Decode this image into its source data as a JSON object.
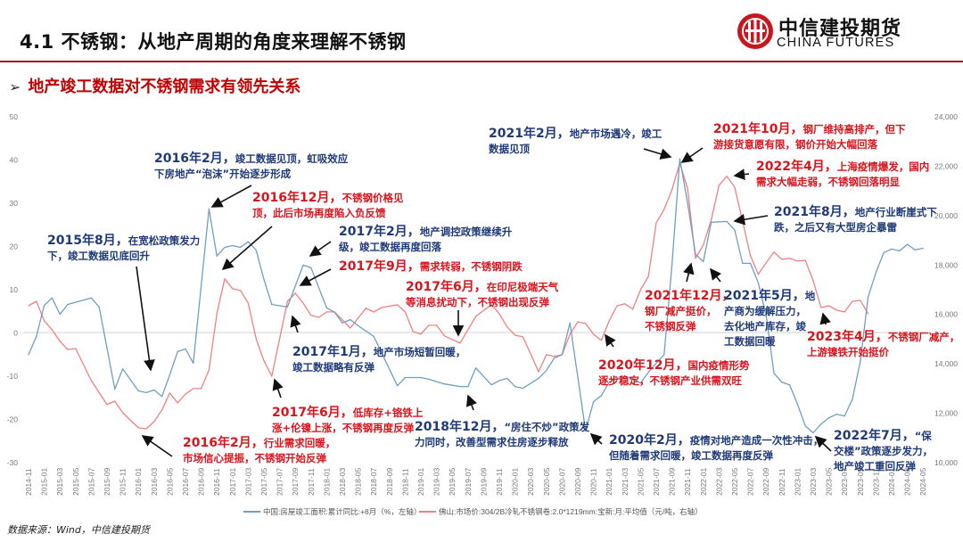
{
  "header": {
    "title": "4.1 不锈钢：从地产周期的角度来理解不锈钢",
    "subtitle_marker": "➢",
    "subtitle": "地产竣工数据对不锈钢需求有领先关系",
    "logo_cn": "中信建投期货",
    "logo_en": "CHINA FUTURES",
    "brand_color": "#c8161d"
  },
  "source": "数据来源：Wind，中信建投期货",
  "chart_data": {
    "type": "line",
    "title": "",
    "grid": false,
    "legend_position": "bottom",
    "x_range": [
      "2014-11",
      "2024-05"
    ],
    "x_tick_labels": [
      "2014-11",
      "2015-01",
      "2015-03",
      "2015-05",
      "2015-07",
      "2015-09",
      "2015-11",
      "2016-01",
      "2016-03",
      "2016-05",
      "2016-07",
      "2016-09",
      "2016-11",
      "2017-01",
      "2017-03",
      "2017-05",
      "2017-07",
      "2017-09",
      "2017-11",
      "2018-01",
      "2018-03",
      "2018-05",
      "2018-07",
      "2018-09",
      "2018-11",
      "2019-01",
      "2019-03",
      "2019-05",
      "2019-07",
      "2019-09",
      "2019-11",
      "2020-01",
      "2020-03",
      "2020-05",
      "2020-07",
      "2020-09",
      "2020-11",
      "2021-01",
      "2021-03",
      "2021-05",
      "2021-07",
      "2021-09",
      "2021-11",
      "2022-01",
      "2022-03",
      "2022-05",
      "2022-07",
      "2022-09",
      "2022-11",
      "2023-01",
      "2023-03",
      "2023-05",
      "2023-07",
      "2023-09",
      "2023-11",
      "2024-01",
      "2024-03",
      "2024-05"
    ],
    "y_left": {
      "range": [
        -30,
        50
      ],
      "ticks": [
        "50",
        "40",
        "30",
        "20",
        "10",
        "0",
        "-10",
        "-20",
        "-30"
      ]
    },
    "y_right": {
      "range": [
        10000,
        24000
      ],
      "ticks": [
        "24,000",
        "22,000",
        "20,000",
        "18,000",
        "16,000",
        "14,000",
        "12,000",
        "10,000"
      ]
    },
    "series": [
      {
        "name": "中国:房屋竣工面积:累计同比:+8月（%，左轴）",
        "axis": "left",
        "color": "#6f9fc0",
        "points": [
          [
            "2014-11",
            -5.0
          ],
          [
            "2014-12",
            -0.8
          ],
          [
            "2015-01",
            6.4
          ],
          [
            "2015-02",
            8.1
          ],
          [
            "2015-03",
            4.3
          ],
          [
            "2015-04",
            6.6
          ],
          [
            "2015-07",
            8.1
          ],
          [
            "2015-08",
            6.0
          ],
          [
            "2015-10",
            -13.0
          ],
          [
            "2015-11",
            -8.3
          ],
          [
            "2016-01",
            -13.4
          ],
          [
            "2016-02",
            -13.8
          ],
          [
            "2016-03",
            -13.2
          ],
          [
            "2016-04",
            -14.7
          ],
          [
            "2016-05",
            -9.7
          ],
          [
            "2016-06",
            -4.3
          ],
          [
            "2016-07",
            -3.7
          ],
          [
            "2016-08",
            -7.0
          ],
          [
            "2016-10",
            28.7
          ],
          [
            "2016-11",
            17.8
          ],
          [
            "2016-12",
            19.8
          ],
          [
            "2017-01",
            20.2
          ],
          [
            "2017-02",
            19.8
          ],
          [
            "2017-03",
            21.1
          ],
          [
            "2017-04",
            19.2
          ],
          [
            "2017-05",
            12.4
          ],
          [
            "2017-06",
            6.6
          ],
          [
            "2017-08",
            6.0
          ],
          [
            "2017-10",
            15.7
          ],
          [
            "2017-11",
            15.1
          ],
          [
            "2018-01",
            5.8
          ],
          [
            "2018-02",
            4.8
          ],
          [
            "2018-03",
            2.3
          ],
          [
            "2018-04",
            3.1
          ],
          [
            "2018-05",
            1.7
          ],
          [
            "2018-07",
            -0.8
          ],
          [
            "2018-10",
            -12.2
          ],
          [
            "2018-11",
            -10.3
          ],
          [
            "2019-01",
            -10.3
          ],
          [
            "2019-02",
            -10.7
          ],
          [
            "2019-04",
            -11.8
          ],
          [
            "2019-06",
            -12.4
          ],
          [
            "2019-07",
            -12.4
          ],
          [
            "2019-08",
            -8.1
          ],
          [
            "2019-10",
            -12.0
          ],
          [
            "2019-11",
            -11.0
          ],
          [
            "2019-12",
            -10.5
          ],
          [
            "2020-01",
            -12.4
          ],
          [
            "2020-02",
            -12.8
          ],
          [
            "2020-04",
            -10.5
          ],
          [
            "2020-05",
            -8.7
          ],
          [
            "2020-06",
            -5.8
          ],
          [
            "2020-07",
            -5.0
          ],
          [
            "2020-08",
            2.3
          ],
          [
            "2020-10",
            -22.7
          ],
          [
            "2020-11",
            -15.9
          ],
          [
            "2020-12",
            -14.5
          ],
          [
            "2021-01",
            -11.4
          ],
          [
            "2021-02",
            -10.5
          ],
          [
            "2021-03",
            -10.1
          ],
          [
            "2021-04",
            -10.5
          ],
          [
            "2021-05",
            -11.6
          ],
          [
            "2021-06",
            -9.1
          ],
          [
            "2021-07",
            -7.0
          ],
          [
            "2021-08",
            -5.0
          ],
          [
            "2021-09",
            15.7
          ],
          [
            "2021-10",
            40.3
          ],
          [
            "2021-11",
            30.0
          ],
          [
            "2021-12",
            18.2
          ],
          [
            "2022-01",
            16.5
          ],
          [
            "2022-02",
            25.6
          ],
          [
            "2022-04",
            25.8
          ],
          [
            "2022-05",
            23.8
          ],
          [
            "2022-06",
            16.1
          ],
          [
            "2022-07",
            16.1
          ],
          [
            "2022-08",
            11.6
          ],
          [
            "2022-09",
            4.1
          ],
          [
            "2022-10",
            -9.3
          ],
          [
            "2022-11",
            -11.4
          ],
          [
            "2022-12",
            -12.0
          ],
          [
            "2023-01",
            -16.5
          ],
          [
            "2023-02",
            -21.5
          ],
          [
            "2023-03",
            -23.1
          ],
          [
            "2023-04",
            -21.1
          ],
          [
            "2023-05",
            -19.6
          ],
          [
            "2023-06",
            -18.8
          ],
          [
            "2023-07",
            -19.2
          ],
          [
            "2023-08",
            -15.3
          ],
          [
            "2023-09",
            -6.6
          ],
          [
            "2023-10",
            8.3
          ],
          [
            "2023-11",
            14.0
          ],
          [
            "2023-12",
            18.6
          ],
          [
            "2024-01",
            19.4
          ],
          [
            "2024-02",
            19.0
          ],
          [
            "2024-03",
            20.5
          ],
          [
            "2024-04",
            19.2
          ],
          [
            "2024-05",
            19.6
          ]
        ]
      },
      {
        "name": "佛山:市场价:304/2B冷轧不锈钢卷:2.0*1219mm:宝新:月:平均值（元/吨，右轴）",
        "axis": "right",
        "color": "#f08080",
        "points": [
          [
            "2014-11",
            16350
          ],
          [
            "2014-12",
            16530
          ],
          [
            "2015-01",
            15740
          ],
          [
            "2015-02",
            15380
          ],
          [
            "2015-03",
            14910
          ],
          [
            "2015-04",
            14580
          ],
          [
            "2015-05",
            14620
          ],
          [
            "2015-07",
            13320
          ],
          [
            "2015-09",
            12350
          ],
          [
            "2015-10",
            12490
          ],
          [
            "2015-11",
            12020
          ],
          [
            "2016-01",
            11410
          ],
          [
            "2016-02",
            11370
          ],
          [
            "2016-03",
            11660
          ],
          [
            "2016-04",
            12130
          ],
          [
            "2016-05",
            12820
          ],
          [
            "2016-06",
            12420
          ],
          [
            "2016-07",
            12780
          ],
          [
            "2016-08",
            13000
          ],
          [
            "2016-09",
            13000
          ],
          [
            "2016-10",
            13750
          ],
          [
            "2016-11",
            16030
          ],
          [
            "2016-12",
            17440
          ],
          [
            "2017-01",
            17040
          ],
          [
            "2017-02",
            16970
          ],
          [
            "2017-03",
            16460
          ],
          [
            "2017-04",
            15020
          ],
          [
            "2017-05",
            14120
          ],
          [
            "2017-06",
            13500
          ],
          [
            "2017-08",
            16530
          ],
          [
            "2017-09",
            16860
          ],
          [
            "2017-10",
            16460
          ],
          [
            "2017-11",
            15960
          ],
          [
            "2017-12",
            15880
          ],
          [
            "2018-01",
            16100
          ],
          [
            "2018-02",
            16100
          ],
          [
            "2018-04",
            15450
          ],
          [
            "2018-05",
            15850
          ],
          [
            "2018-06",
            16250
          ],
          [
            "2018-07",
            16100
          ],
          [
            "2018-08",
            16280
          ],
          [
            "2018-10",
            16390
          ],
          [
            "2018-11",
            16100
          ],
          [
            "2018-12",
            15310
          ],
          [
            "2019-01",
            15200
          ],
          [
            "2019-02",
            15560
          ],
          [
            "2019-03",
            15560
          ],
          [
            "2019-04",
            15130
          ],
          [
            "2019-06",
            14840
          ],
          [
            "2019-08",
            15920
          ],
          [
            "2019-10",
            16390
          ],
          [
            "2019-11",
            16030
          ],
          [
            "2019-12",
            15490
          ],
          [
            "2020-01",
            15160
          ],
          [
            "2020-02",
            15090
          ],
          [
            "2020-03",
            14400
          ],
          [
            "2020-04",
            13680
          ],
          [
            "2020-05",
            14370
          ],
          [
            "2020-06",
            14300
          ],
          [
            "2020-07",
            14370
          ],
          [
            "2020-08",
            15200
          ],
          [
            "2020-09",
            15700
          ],
          [
            "2020-10",
            15630
          ],
          [
            "2020-11",
            15200
          ],
          [
            "2020-12",
            14950
          ],
          [
            "2021-01",
            15740
          ],
          [
            "2021-02",
            16350
          ],
          [
            "2021-03",
            16430
          ],
          [
            "2021-04",
            16210
          ],
          [
            "2021-05",
            17000
          ],
          [
            "2021-06",
            17540
          ],
          [
            "2021-07",
            19710
          ],
          [
            "2021-08",
            20250
          ],
          [
            "2021-09",
            21050
          ],
          [
            "2021-10",
            22130
          ],
          [
            "2021-11",
            21080
          ],
          [
            "2021-12",
            18270
          ],
          [
            "2022-01",
            18810
          ],
          [
            "2022-02",
            19820
          ],
          [
            "2022-03",
            21230
          ],
          [
            "2022-04",
            21590
          ],
          [
            "2022-05",
            21150
          ],
          [
            "2022-06",
            19780
          ],
          [
            "2022-07",
            18380
          ],
          [
            "2022-08",
            17620
          ],
          [
            "2022-09",
            18090
          ],
          [
            "2022-10",
            18520
          ],
          [
            "2022-11",
            18230
          ],
          [
            "2022-12",
            18270
          ],
          [
            "2023-01",
            18160
          ],
          [
            "2023-02",
            18190
          ],
          [
            "2023-03",
            17360
          ],
          [
            "2023-04",
            16280
          ],
          [
            "2023-05",
            16350
          ],
          [
            "2023-06",
            16170
          ],
          [
            "2023-07",
            16100
          ],
          [
            "2023-08",
            16530
          ],
          [
            "2023-09",
            16570
          ],
          [
            "2023-10",
            16030
          ]
        ]
      }
    ],
    "annotations": [
      {
        "color": "blue",
        "date": "2015年8月，",
        "lines": [
          "在宽松政策发力",
          "下，竣工数据见底回升"
        ]
      },
      {
        "color": "blue",
        "date": "2016年2月，",
        "lines": [
          "竣工数据见顶，虹吸效应",
          "下房地产“泡沫”开始逐步形成"
        ]
      },
      {
        "color": "red",
        "date": "2016年12月，",
        "lines": [
          "不锈钢价格见",
          "顶，此后市场再度陷入负反馈"
        ]
      },
      {
        "color": "blue",
        "date": "2017年2月，",
        "lines": [
          "地产调控政策继续升",
          "级，竣工数据再度回落"
        ]
      },
      {
        "color": "red",
        "date": "2017年9月，",
        "lines": [
          "需求转弱，不锈钢阴跌"
        ]
      },
      {
        "color": "red",
        "date": "2017年6月，",
        "lines": [
          "在印尼极端天气",
          "等消息扰动下，不锈钢出现反弹"
        ]
      },
      {
        "color": "blue",
        "date": "2017年1月，",
        "lines": [
          "地产市场短暂回暖，",
          "竣工数据略有反弹"
        ]
      },
      {
        "color": "red",
        "date": "2017年6月，",
        "lines": [
          "低库存+铬铁上",
          "涨+伦镍上涨，不锈钢再度反弹"
        ]
      },
      {
        "color": "red",
        "date": "2016年2月，",
        "lines": [
          "行业需求回暖，",
          "市场信心提振，不锈钢开始反弹"
        ]
      },
      {
        "color": "blue",
        "date": "2018年12月，",
        "lines": [
          "“房住不炒”政策发",
          "力同时，改善型需求住房逐步释放"
        ]
      },
      {
        "color": "red",
        "date": "2020年12月，",
        "lines": [
          "国内疫情形势",
          "逐步稳定，不锈钢产业供需双旺"
        ]
      },
      {
        "color": "blue",
        "date": "2020年2月，",
        "lines": [
          "疫情对地产造成一次性冲击，",
          "但随着需求回暖，竣工数据再度反弹"
        ]
      },
      {
        "color": "red",
        "date": "2021年12月，",
        "lines": [
          "",
          "钢厂减产挺价，",
          "不锈钢反弹"
        ]
      },
      {
        "color": "blue",
        "date": "2021年5月，",
        "lines": [
          "地",
          "产商为缓解压力，",
          "去化地产库存，竣",
          "工数据回暖"
        ]
      },
      {
        "color": "blue",
        "date": "2021年2月，",
        "lines": [
          "地产市场遇冷，竣工",
          "数据见顶"
        ]
      },
      {
        "color": "red",
        "date": "2021年10月，",
        "lines": [
          "钢厂维持高排产，但下",
          "游接货意愿有限，钢价开始大幅回落"
        ]
      },
      {
        "color": "red",
        "date": "2022年4月，",
        "lines": [
          "上海疫情爆发，国内",
          "需求大幅走弱，不锈钢回落明显"
        ]
      },
      {
        "color": "blue",
        "date": "2021年8月，",
        "lines": [
          "地产行业断崖式下",
          "跌，之后又有大型房企暴雷"
        ]
      },
      {
        "color": "red",
        "date": "2023年4月，",
        "lines": [
          "不锈钢厂减产，",
          "上游镍铁开始挺价"
        ]
      },
      {
        "color": "blue",
        "date": "2022年7月，",
        "lines": [
          "“保",
          "交楼”政策逐步发力，",
          "地产竣工重回反弹"
        ]
      }
    ]
  }
}
